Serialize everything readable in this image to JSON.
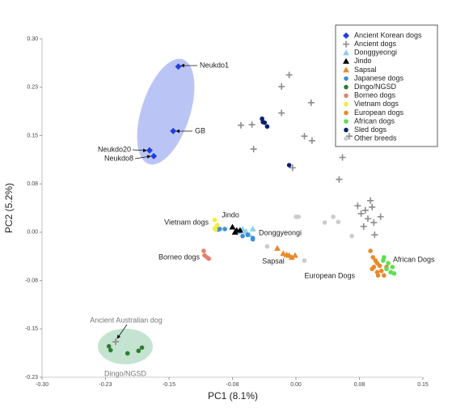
{
  "chart_data": {
    "type": "scatter",
    "x_label": "PC1 (8.1%)",
    "y_label": "PC2 (5.2%)",
    "xlim": [
      -0.3,
      0.15
    ],
    "ylim": [
      -0.225,
      0.3
    ],
    "xticks": [
      {
        "value": -0.3,
        "label": "-0.30"
      },
      {
        "value": -0.225,
        "label": "-0.23"
      },
      {
        "value": -0.15,
        "label": "-0.15"
      },
      {
        "value": -0.075,
        "label": "-0.08"
      },
      {
        "value": 0,
        "label": "0.00"
      },
      {
        "value": 0.075,
        "label": "0.08"
      },
      {
        "value": 0.15,
        "label": "0.15"
      }
    ],
    "yticks": [
      {
        "value": 0.3,
        "label": "0.30"
      },
      {
        "value": 0.225,
        "label": "0.23"
      },
      {
        "value": 0.15,
        "label": "0.15"
      },
      {
        "value": 0.075,
        "label": "0.08"
      },
      {
        "value": 0,
        "label": "0.00"
      },
      {
        "value": -0.075,
        "label": "-0.08"
      },
      {
        "value": -0.15,
        "label": "-0.15"
      },
      {
        "value": -0.225,
        "label": "-0.23"
      }
    ],
    "legend_position": "upper right",
    "series": [
      {
        "name": "Ancient Korean dogs",
        "color": "#1f3fe0",
        "marker": "diamond",
        "x": [
          -0.139,
          -0.145,
          -0.173,
          -0.168
        ],
        "y": [
          0.257,
          0.157,
          0.127,
          0.118
        ]
      },
      {
        "name": "Ancient dogs",
        "color": "#8c8c8c",
        "marker": "plus",
        "x": [
          -0.017,
          -0.008,
          0.018,
          0.01,
          0.019,
          -0.065,
          -0.052,
          -0.05,
          -0.017,
          -0.004,
          0.055,
          0.063,
          0.051,
          0.073,
          0.077,
          0.082,
          0.088,
          0.09,
          0.085,
          0.092,
          0.08,
          0.093,
          0.1,
          -0.213
        ],
        "y": [
          0.226,
          0.244,
          0.201,
          0.149,
          0.142,
          0.166,
          0.167,
          0.129,
          0.185,
          0.1,
          0.116,
          0.149,
          0.082,
          0.041,
          0.029,
          0.034,
          0.049,
          0.039,
          0.021,
          0.015,
          0.009,
          -0.004,
          0.024,
          -0.17
        ]
      },
      {
        "name": "Donggyeongi",
        "color": "#8ccff0",
        "marker": "triangle",
        "x": [
          -0.063,
          -0.059,
          -0.055,
          -0.051,
          -0.068
        ],
        "y": [
          0.005,
          0.001,
          -0.004,
          0.005,
          0.001
        ]
      },
      {
        "name": "Jindo",
        "color": "#000000",
        "marker": "triangle",
        "x": [
          -0.075,
          -0.07,
          -0.066,
          -0.072
        ],
        "y": [
          0.008,
          0.003,
          0.003,
          0.0
        ]
      },
      {
        "name": "Sapsal",
        "color": "#e8892b",
        "marker": "triangle",
        "x": [
          -0.022,
          -0.015,
          -0.011,
          -0.008,
          -0.005,
          -0.001
        ],
        "y": [
          -0.025,
          -0.033,
          -0.035,
          -0.036,
          -0.039,
          -0.036
        ]
      },
      {
        "name": "Japanese dogs",
        "color": "#3b8fd6",
        "marker": "circle",
        "x": [
          -0.09,
          -0.084,
          -0.063,
          -0.057,
          -0.051,
          -0.051,
          -0.092
        ],
        "y": [
          0.005,
          0.005,
          -0.006,
          -0.004,
          -0.009,
          -0.011,
          0.004
        ]
      },
      {
        "name": "Dingo/NGSD",
        "color": "#2e7d32",
        "marker": "circle",
        "x": [
          -0.221,
          -0.219,
          -0.199,
          -0.186,
          -0.182
        ],
        "y": [
          -0.177,
          -0.183,
          -0.188,
          -0.184,
          -0.179
        ]
      },
      {
        "name": "Borneo dogs",
        "color": "#e8806f",
        "marker": "circle",
        "x": [
          -0.109,
          -0.105,
          -0.103,
          -0.108
        ],
        "y": [
          -0.029,
          -0.039,
          -0.041,
          -0.036
        ]
      },
      {
        "name": "Vietnam dogs",
        "color": "#f0ee3a",
        "marker": "circle",
        "x": [
          -0.096,
          -0.093,
          -0.095,
          -0.096
        ],
        "y": [
          0.019,
          0.011,
          0.004,
          0.006
        ]
      },
      {
        "name": "European dogs",
        "color": "#e8892b",
        "marker": "circle",
        "x": [
          0.088,
          0.091,
          0.096,
          0.099,
          0.092,
          0.101,
          0.096,
          0.09,
          0.104,
          0.097,
          0.107,
          0.094
        ],
        "y": [
          -0.029,
          -0.039,
          -0.048,
          -0.052,
          -0.054,
          -0.06,
          -0.062,
          -0.057,
          -0.067,
          -0.067,
          -0.054,
          -0.044
        ]
      },
      {
        "name": "African dogs",
        "color": "#5be04f",
        "marker": "circle",
        "x": [
          0.104,
          0.109,
          0.114,
          0.107,
          0.112,
          0.116,
          0.103
        ],
        "y": [
          -0.039,
          -0.048,
          -0.054,
          -0.057,
          -0.062,
          -0.064,
          -0.044
        ]
      },
      {
        "name": "Sled dogs",
        "color": "#0d1f6e",
        "marker": "circle",
        "x": [
          -0.04,
          -0.037,
          -0.034,
          -0.039,
          -0.008
        ],
        "y": [
          0.176,
          0.17,
          0.164,
          0.171,
          0.104
        ]
      },
      {
        "name": "Other breeds",
        "color": "#cccccc",
        "marker": "circle",
        "x": [
          0.0,
          0.003,
          0.034,
          0.044,
          0.05,
          0.066,
          0.01,
          -0.034
        ],
        "y": [
          0.024,
          0.024,
          0.015,
          0.024,
          0.016,
          -0.006,
          -0.044,
          -0.022
        ]
      }
    ],
    "annotations": [
      "Neukdo1",
      "GB",
      "Neukdo20",
      "Neukdo8",
      "Vietnam dogs",
      "Jindo",
      "Donggyeongi",
      "Borneo dogs",
      "Sapsal",
      "European Dogs",
      "African Dogs",
      "Ancient Australian dog",
      "Dingo/NGSD"
    ]
  }
}
